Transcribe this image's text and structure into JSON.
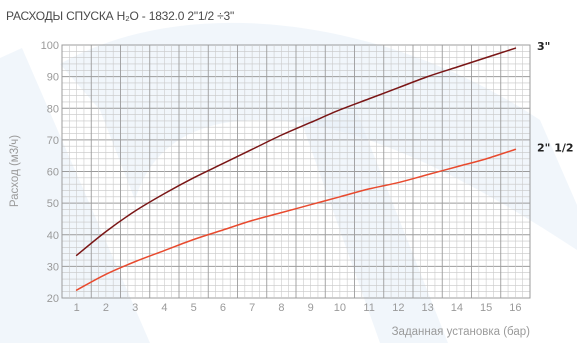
{
  "chart_data": {
    "type": "line",
    "title": "РАСХОДЫ СПУСКА H₂O - 1832.0 2\"1/2 ÷3\"",
    "xlabel": "Заданная установка (бар)",
    "ylabel": "Расход (м3/ч)",
    "xlim": [
      0.5,
      16.5
    ],
    "ylim": [
      20,
      100
    ],
    "x_ticks": [
      1,
      2,
      3,
      4,
      5,
      6,
      7,
      8,
      9,
      10,
      11,
      12,
      13,
      14,
      15,
      16
    ],
    "y_ticks": [
      20,
      30,
      40,
      50,
      60,
      70,
      80,
      90,
      100
    ],
    "grid": true,
    "series": [
      {
        "name": "3\"",
        "color": "#7a1616",
        "x": [
          1,
          2,
          3,
          4,
          5,
          6,
          7,
          8,
          9,
          10,
          11,
          12,
          13,
          14,
          15,
          16
        ],
        "values": [
          33.5,
          41,
          47.5,
          53,
          58,
          62.5,
          67,
          71.5,
          75.5,
          79.5,
          83,
          86.5,
          90,
          93,
          96,
          99
        ]
      },
      {
        "name": "2\" 1/2",
        "color": "#e84a2e",
        "x": [
          1,
          2,
          3,
          4,
          5,
          6,
          7,
          8,
          9,
          10,
          11,
          12,
          13,
          14,
          15,
          16
        ],
        "values": [
          22.5,
          27.5,
          31.5,
          35,
          38.5,
          41.5,
          44.5,
          47,
          49.5,
          52,
          54.5,
          56.5,
          59,
          61.5,
          64,
          67
        ]
      }
    ]
  },
  "background": {
    "watermark_color": "#e6eef8"
  }
}
